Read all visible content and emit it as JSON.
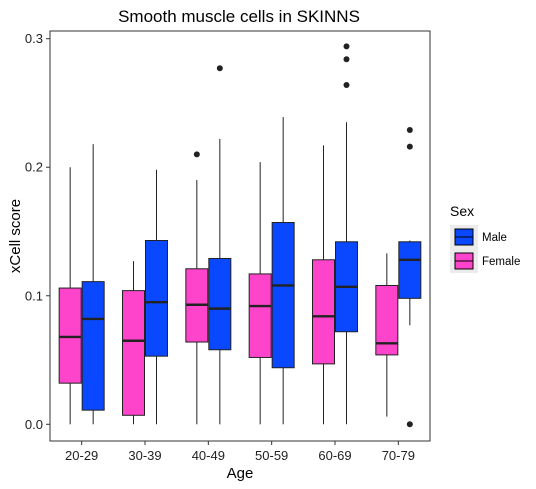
{
  "chart_data": {
    "type": "box",
    "title": "Smooth muscle cells in SKINNS",
    "xlabel": "Age",
    "ylabel": "xCell score",
    "ylim": [
      -0.013,
      0.306
    ],
    "yticks": [
      0.0,
      0.1,
      0.2,
      0.3
    ],
    "ytick_labels": [
      "0.0",
      "0.1",
      "0.2",
      "0.3"
    ],
    "categories": [
      "20-29",
      "30-39",
      "40-49",
      "50-59",
      "60-69",
      "70-79"
    ],
    "legend": {
      "title": "Sex",
      "position": "right",
      "entries": [
        "Male",
        "Female"
      ]
    },
    "grid": false,
    "series": [
      {
        "name": "Female",
        "color": "#ff44cc",
        "boxes": [
          {
            "whisker_low": 0.0,
            "q1": 0.032,
            "median": 0.068,
            "q3": 0.106,
            "whisker_high": 0.2,
            "outliers": []
          },
          {
            "whisker_low": 0.0,
            "q1": 0.007,
            "median": 0.065,
            "q3": 0.104,
            "whisker_high": 0.127,
            "outliers": []
          },
          {
            "whisker_low": 0.0,
            "q1": 0.064,
            "median": 0.093,
            "q3": 0.121,
            "whisker_high": 0.19,
            "outliers": [
              0.21
            ]
          },
          {
            "whisker_low": 0.0,
            "q1": 0.052,
            "median": 0.092,
            "q3": 0.117,
            "whisker_high": 0.204,
            "outliers": []
          },
          {
            "whisker_low": 0.0,
            "q1": 0.047,
            "median": 0.084,
            "q3": 0.128,
            "whisker_high": 0.217,
            "outliers": []
          },
          {
            "whisker_low": 0.006,
            "q1": 0.054,
            "median": 0.063,
            "q3": 0.108,
            "whisker_high": 0.133,
            "outliers": []
          }
        ]
      },
      {
        "name": "Male",
        "color": "#0a48ff",
        "boxes": [
          {
            "whisker_low": 0.0,
            "q1": 0.011,
            "median": 0.082,
            "q3": 0.111,
            "whisker_high": 0.218,
            "outliers": []
          },
          {
            "whisker_low": 0.0,
            "q1": 0.053,
            "median": 0.095,
            "q3": 0.143,
            "whisker_high": 0.198,
            "outliers": []
          },
          {
            "whisker_low": 0.0,
            "q1": 0.058,
            "median": 0.09,
            "q3": 0.129,
            "whisker_high": 0.222,
            "outliers": [
              0.277
            ]
          },
          {
            "whisker_low": 0.0,
            "q1": 0.044,
            "median": 0.108,
            "q3": 0.157,
            "whisker_high": 0.239,
            "outliers": []
          },
          {
            "whisker_low": 0.0,
            "q1": 0.072,
            "median": 0.107,
            "q3": 0.142,
            "whisker_high": 0.235,
            "outliers": [
              0.264,
              0.284,
              0.294
            ]
          },
          {
            "whisker_low": 0.077,
            "q1": 0.098,
            "median": 0.128,
            "q3": 0.142,
            "whisker_high": 0.143,
            "outliers": [
              0.0,
              0.216,
              0.229
            ]
          }
        ]
      }
    ]
  }
}
